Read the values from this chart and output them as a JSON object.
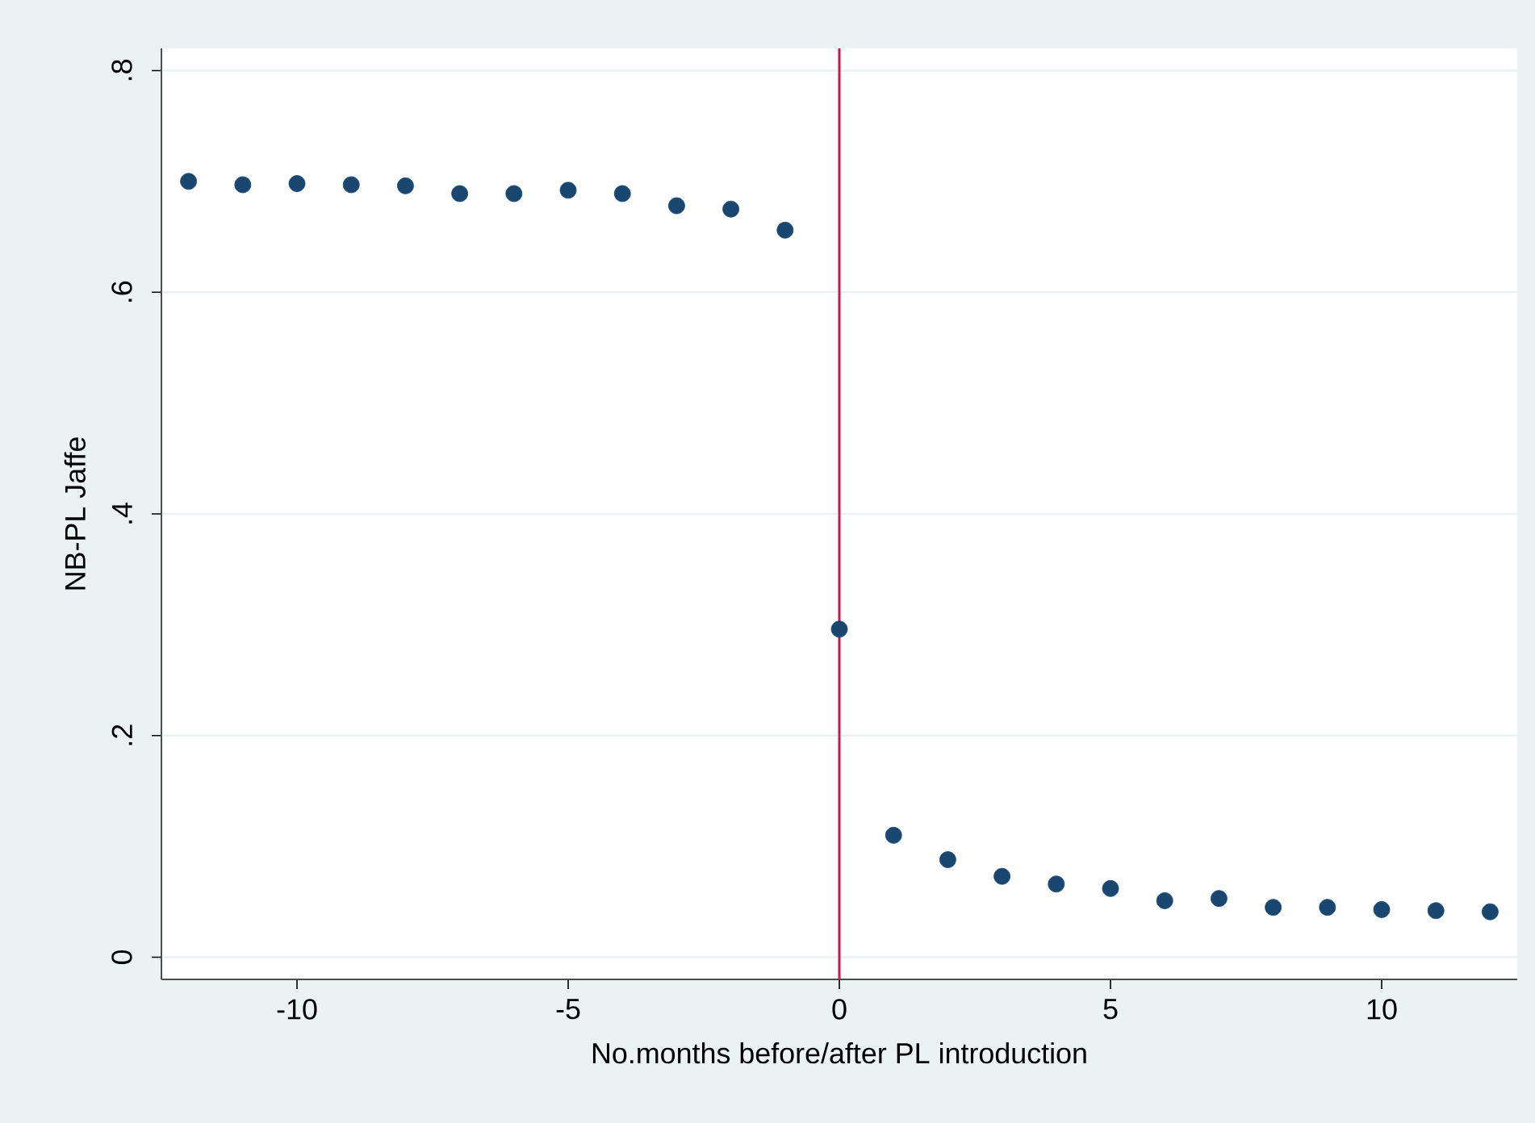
{
  "chart_data": {
    "type": "scatter",
    "xlabel": "No.months before/after PL introduction",
    "ylabel": "NB-PL Jaffe",
    "x": [
      -12,
      -11,
      -10,
      -9,
      -8,
      -7,
      -6,
      -5,
      -4,
      -3,
      -2,
      -1,
      0,
      1,
      2,
      3,
      4,
      5,
      6,
      7,
      8,
      9,
      10,
      11,
      12
    ],
    "series": [
      {
        "color": "#1a476f",
        "values": [
          0.7,
          0.697,
          0.698,
          0.697,
          0.696,
          0.689,
          0.689,
          0.692,
          0.689,
          0.678,
          0.675,
          0.656,
          0.296,
          0.11,
          0.088,
          0.073,
          0.066,
          0.062,
          0.051,
          0.053,
          0.045,
          0.045,
          0.043,
          0.042,
          0.041
        ]
      }
    ],
    "xlim": [
      -12.5,
      12.5
    ],
    "ylim": [
      -0.02,
      0.82
    ],
    "xticks": [
      {
        "value": -10,
        "label": "-10"
      },
      {
        "value": -5,
        "label": "-5"
      },
      0,
      5,
      10
    ],
    "yticks": [
      0,
      {
        "value": 0.2,
        "label": ".2"
      },
      {
        "value": 0.4,
        "label": ".4"
      },
      {
        "value": 0.6,
        "label": ".6"
      },
      {
        "value": 0.8,
        "label": ".8"
      }
    ],
    "grid": "y",
    "marker": "circle",
    "ref_lines": [
      {
        "axis": "x",
        "value": 0,
        "color": "#c8174a"
      }
    ]
  }
}
